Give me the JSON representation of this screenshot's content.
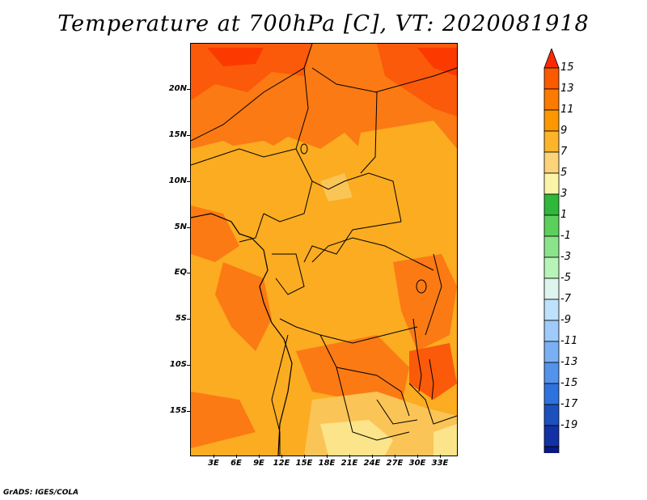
{
  "title": "Temperature at 700hPa [C], VT: 2020081918",
  "credit": "GrADS: IGES/COLA",
  "y_axis_labels": [
    "20N",
    "15N",
    "10N",
    "5N",
    "EQ",
    "5S",
    "10S",
    "15S"
  ],
  "x_axis_labels": [
    "3E",
    "6E",
    "9E",
    "12E",
    "15E",
    "18E",
    "21E",
    "24E",
    "27E",
    "30E",
    "33E"
  ],
  "colorbar": {
    "labels": [
      "15",
      "13",
      "11",
      "9",
      "7",
      "5",
      "3",
      "1",
      "-1",
      "-3",
      "-5",
      "-7",
      "-9",
      "-11",
      "-13",
      "-15",
      "-17",
      "-19"
    ],
    "colors": [
      "#fb2a00",
      "#fb5a00",
      "#fb7a00",
      "#fb9800",
      "#fbb42c",
      "#fbd47a",
      "#fbf3a7",
      "#2fb83a",
      "#5cd05c",
      "#8be48b",
      "#b8f4b8",
      "#ddf5ec",
      "#bee2fb",
      "#9ecbfa",
      "#7ab1f5",
      "#5493ec",
      "#2e73dd",
      "#1d4fbf",
      "#1231a4",
      "#0a1884",
      "#080662",
      "#d8d8f4"
    ]
  },
  "map_colors": {
    "base": "#fbac20",
    "warm": "#fb7a14",
    "hot": "#fb5a0a",
    "hottest": "#fb3a00",
    "cool": "#fbc456",
    "coolest": "#fbe48a"
  }
}
